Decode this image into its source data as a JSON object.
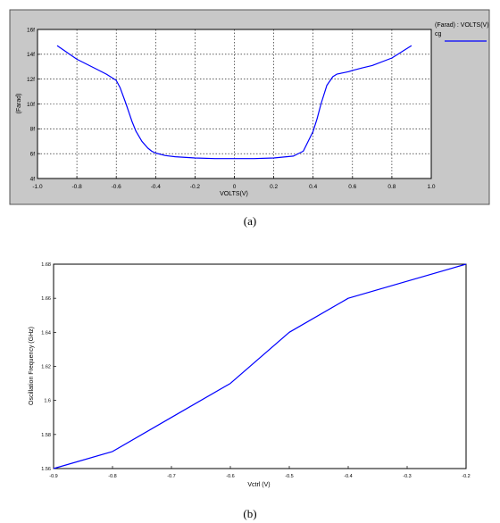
{
  "chart_data": [
    {
      "type": "line",
      "xlabel": "VOLTS(V)",
      "ylabel": "(Farad)",
      "xlim": [
        -1.0,
        1.0
      ],
      "ylim": [
        4,
        16
      ],
      "x_ticks": [
        "-1.0",
        "-0.8",
        "-0.6",
        "-0.4",
        "-0.2",
        "0",
        "0.2",
        "0.4",
        "0.6",
        "0.8",
        "1.0"
      ],
      "y_ticks": [
        "4f",
        "6f",
        "8f",
        "10f",
        "12f",
        "14f",
        "16f"
      ],
      "grid": true,
      "legend_position": "right",
      "legend_title": "(Farad) : VOLTS(V)",
      "series": [
        {
          "name": "cg",
          "color": "#0000ff",
          "x": [
            -0.9,
            -0.8,
            -0.7,
            -0.65,
            -0.6,
            -0.58,
            -0.55,
            -0.52,
            -0.5,
            -0.47,
            -0.44,
            -0.42,
            -0.4,
            -0.35,
            -0.3,
            -0.2,
            -0.1,
            0.0,
            0.1,
            0.2,
            0.3,
            0.35,
            0.4,
            0.42,
            0.44,
            0.47,
            0.5,
            0.52,
            0.55,
            0.58,
            0.6,
            0.65,
            0.7,
            0.8,
            0.9
          ],
          "y": [
            14.7,
            13.6,
            12.8,
            12.4,
            11.9,
            11.3,
            10.0,
            8.6,
            7.8,
            7.0,
            6.45,
            6.2,
            6.05,
            5.85,
            5.75,
            5.65,
            5.6,
            5.6,
            5.6,
            5.65,
            5.8,
            6.2,
            7.8,
            8.8,
            10.0,
            11.5,
            12.2,
            12.4,
            12.5,
            12.6,
            12.7,
            12.9,
            13.1,
            13.7,
            14.7
          ]
        }
      ]
    },
    {
      "type": "line",
      "xlabel": "Vctrl (V)",
      "ylabel": "Oscillation Frequency (GHz)",
      "xlim": [
        -0.9,
        -0.2
      ],
      "ylim": [
        1.56,
        1.68
      ],
      "x_ticks": [
        "-0.9",
        "-0.8",
        "-0.7",
        "-0.6",
        "-0.5",
        "-0.4",
        "-0.3",
        "-0.2"
      ],
      "y_ticks": [
        "1.56",
        "1.58",
        "1.6",
        "1.62",
        "1.64",
        "1.66",
        "1.68"
      ],
      "grid": false,
      "series": [
        {
          "name": "",
          "color": "#0000ff",
          "x": [
            -0.9,
            -0.8,
            -0.7,
            -0.6,
            -0.5,
            -0.4,
            -0.3,
            -0.2
          ],
          "y": [
            1.56,
            1.57,
            1.59,
            1.61,
            1.64,
            1.66,
            1.67,
            1.68
          ]
        }
      ]
    }
  ],
  "captions": {
    "a": "(a)",
    "b": "(b)"
  }
}
